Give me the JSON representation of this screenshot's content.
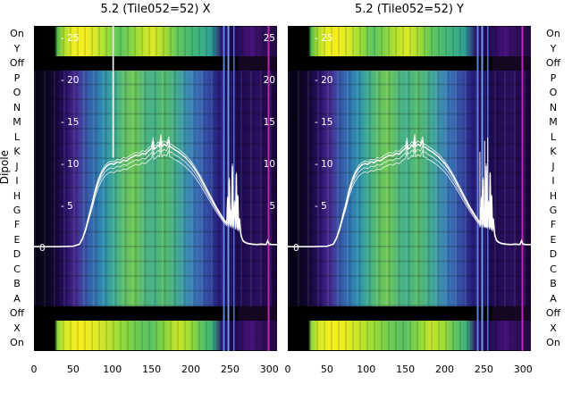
{
  "titles": {
    "left": "5.2 (Tile052=52) X",
    "right": "5.2 (Tile052=52) Y"
  },
  "y_axis": {
    "label": "Dipole",
    "row_labels": [
      "On",
      "Y",
      "Off",
      "P",
      "O",
      "N",
      "M",
      "L",
      "K",
      "J",
      "I",
      "H",
      "G",
      "F",
      "E",
      "D",
      "C",
      "B",
      "A",
      "Off",
      "X",
      "On"
    ]
  },
  "x_axis": {
    "ticks": [
      "0",
      "50",
      "100",
      "150",
      "200",
      "250",
      "300"
    ]
  },
  "value_axis": {
    "ticks": [
      "25",
      "20",
      "15",
      "10",
      "5"
    ],
    "zero": "0",
    "tick_prefix": "- "
  },
  "chart_data": {
    "type": "heatmap",
    "x_range": [
      0,
      310
    ],
    "value_range": [
      0,
      25
    ],
    "row_labels_top_to_bottom": [
      "On",
      "Y",
      "Off",
      "P",
      "O",
      "N",
      "M",
      "L",
      "K",
      "J",
      "I",
      "H",
      "G",
      "F",
      "E",
      "D",
      "C",
      "B",
      "A",
      "Off",
      "X",
      "On"
    ],
    "row_band_pattern": [
      "bright",
      "bright",
      "dark",
      "signal",
      "signal",
      "signal",
      "signal",
      "signal",
      "signal",
      "signal",
      "signal",
      "signal",
      "signal",
      "signal",
      "signal",
      "signal",
      "signal",
      "signal",
      "signal",
      "dark",
      "bright",
      "bright"
    ],
    "subplots": [
      {
        "title": "5.2 (Tile052=52) X",
        "full_height_spike_x": 101
      },
      {
        "title": "5.2 (Tile052=52) Y",
        "extra_spikes_x_v": [
          [
            245,
            11.5
          ],
          [
            248,
            7
          ],
          [
            251,
            12.8
          ],
          [
            253,
            6.5
          ],
          [
            255,
            13.2
          ],
          [
            258,
            9
          ],
          [
            260,
            5
          ]
        ]
      }
    ],
    "overlay_curve_x_v": [
      [
        0,
        0.2
      ],
      [
        30,
        0.2
      ],
      [
        50,
        0.25
      ],
      [
        58,
        0.5
      ],
      [
        62,
        1.2
      ],
      [
        66,
        2.3
      ],
      [
        70,
        3.8
      ],
      [
        74,
        5.2
      ],
      [
        78,
        6.8
      ],
      [
        82,
        8
      ],
      [
        86,
        8.9
      ],
      [
        90,
        9.5
      ],
      [
        94,
        9.9
      ],
      [
        98,
        10.1
      ],
      [
        102,
        10
      ],
      [
        106,
        10.3
      ],
      [
        110,
        10.2
      ],
      [
        114,
        10.5
      ],
      [
        118,
        10.4
      ],
      [
        122,
        10.7
      ],
      [
        126,
        10.9
      ],
      [
        130,
        11.1
      ],
      [
        134,
        11
      ],
      [
        138,
        11.3
      ],
      [
        142,
        11.2
      ],
      [
        146,
        11.6
      ],
      [
        150,
        11.9
      ],
      [
        152,
        12.8
      ],
      [
        153,
        11.8
      ],
      [
        156,
        12
      ],
      [
        158,
        12.3
      ],
      [
        160,
        12.1
      ],
      [
        162,
        13.2
      ],
      [
        163,
        12.1
      ],
      [
        166,
        12.4
      ],
      [
        169,
        12.2
      ],
      [
        172,
        12.9
      ],
      [
        173,
        12.1
      ],
      [
        176,
        12
      ],
      [
        180,
        11.7
      ],
      [
        184,
        11.5
      ],
      [
        188,
        11.2
      ],
      [
        192,
        10.9
      ],
      [
        196,
        10.5
      ],
      [
        200,
        10.1
      ],
      [
        204,
        9.6
      ],
      [
        208,
        9
      ],
      [
        212,
        8.4
      ],
      [
        216,
        7.7
      ],
      [
        220,
        7
      ],
      [
        224,
        6.3
      ],
      [
        228,
        5.6
      ],
      [
        232,
        4.9
      ],
      [
        236,
        4.3
      ],
      [
        240,
        3.7
      ],
      [
        243,
        3.3
      ],
      [
        246,
        3
      ],
      [
        247,
        6
      ],
      [
        248,
        2.9
      ],
      [
        249,
        8.2
      ],
      [
        250,
        2.8
      ],
      [
        251,
        4.5
      ],
      [
        252,
        2.7
      ],
      [
        253,
        9.8
      ],
      [
        254,
        2.6
      ],
      [
        256,
        5.5
      ],
      [
        257,
        2.5
      ],
      [
        258,
        8.8
      ],
      [
        259,
        2.4
      ],
      [
        260,
        6.2
      ],
      [
        261,
        2.2
      ],
      [
        262,
        3.5
      ],
      [
        264,
        1.6
      ],
      [
        266,
        1
      ],
      [
        268,
        0.8
      ],
      [
        272,
        0.6
      ],
      [
        278,
        0.5
      ],
      [
        284,
        0.45
      ],
      [
        290,
        0.5
      ],
      [
        296,
        0.45
      ],
      [
        298,
        0.9
      ],
      [
        300,
        0.5
      ],
      [
        304,
        0.45
      ],
      [
        310,
        0.45
      ]
    ],
    "curve_bundle_scales": [
      1,
      0.95,
      1.03,
      0.9
    ],
    "palette": {
      "background": "#000000",
      "purple": "#44107a",
      "blue": "#3273b2",
      "teal": "#3fae93",
      "green": "#5fc06b",
      "yellow": "#f4ee22",
      "magenta": "#d728cd",
      "curve": "#ffffff"
    }
  }
}
